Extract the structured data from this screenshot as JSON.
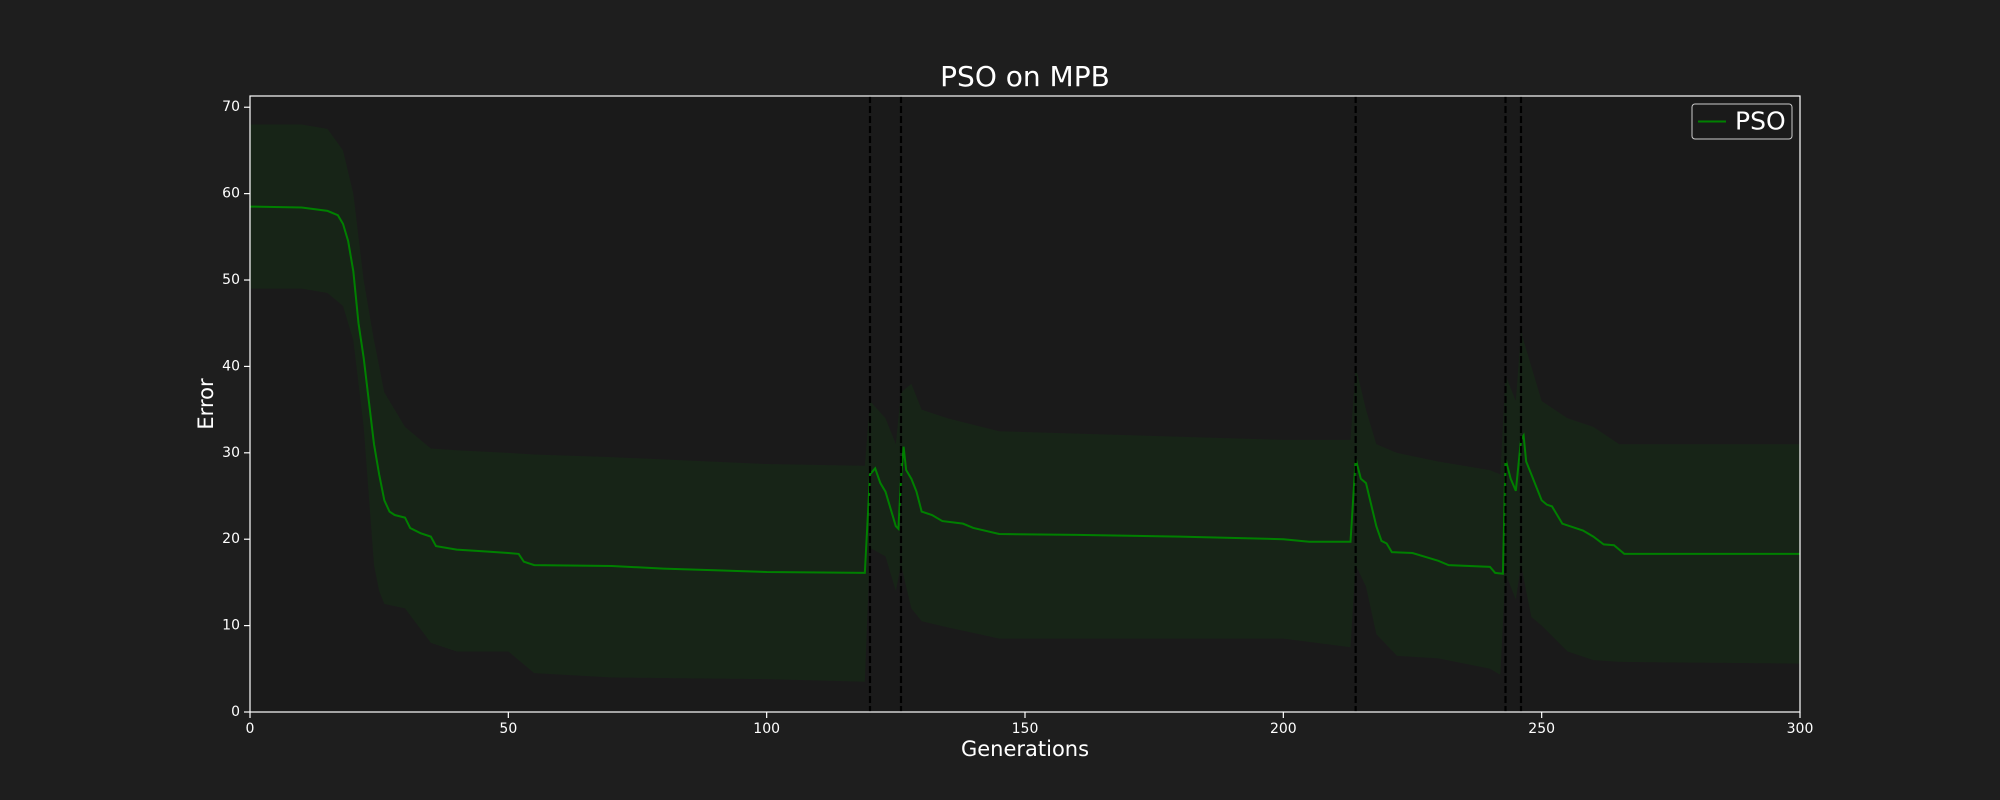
{
  "chart_data": {
    "type": "line",
    "title": "PSO on MPB",
    "xlabel": "Generations",
    "ylabel": "Error",
    "xlim": [
      0,
      300
    ],
    "ylim": [
      0,
      71.3
    ],
    "xticks": [
      0,
      50,
      100,
      150,
      200,
      250,
      300
    ],
    "yticks": [
      0,
      10,
      20,
      30,
      40,
      50,
      60,
      70
    ],
    "legend": "upper right",
    "series": [
      {
        "name": "PSO",
        "color": "#008000",
        "x": [
          0,
          10,
          15,
          17,
          18,
          19,
          20,
          21,
          22,
          23,
          24,
          25,
          26,
          27,
          28,
          30,
          31,
          33,
          35,
          36,
          40,
          45,
          50,
          52,
          53,
          55,
          70,
          80,
          90,
          100,
          119,
          120,
          121,
          122,
          123,
          124,
          125,
          125.5,
          126,
          126.5,
          127,
          128,
          129,
          130,
          132,
          134,
          138,
          140,
          145,
          160,
          180,
          200,
          205,
          213,
          214,
          215,
          216,
          217,
          218,
          219,
          220,
          221,
          225,
          230,
          232,
          240,
          241,
          242.5,
          243,
          244,
          245,
          246,
          246.5,
          247,
          248,
          250,
          251,
          252,
          254,
          258,
          260,
          262,
          264,
          266,
          300
        ],
        "values": [
          58.5,
          58.4,
          58,
          57.5,
          56.5,
          54.5,
          51,
          45,
          41,
          36,
          31,
          27.5,
          24.5,
          23.2,
          22.8,
          22.5,
          21.3,
          20.7,
          20.3,
          19.2,
          18.8,
          18.6,
          18.4,
          18.3,
          17.4,
          17,
          16.9,
          16.6,
          16.4,
          16.2,
          16.1,
          27.5,
          28.2,
          26.5,
          25.5,
          23.5,
          21.5,
          21.2,
          27,
          30.7,
          28,
          27,
          25.5,
          23.2,
          22.8,
          22.1,
          21.8,
          21.3,
          20.6,
          20.5,
          20.3,
          20,
          19.7,
          19.7,
          29.3,
          27,
          26.5,
          24,
          21.5,
          19.8,
          19.5,
          18.5,
          18.4,
          17.5,
          17,
          16.8,
          16.1,
          16,
          29.3,
          27,
          25.6,
          31.5,
          32,
          29,
          27.5,
          24.5,
          24,
          23.8,
          21.8,
          21,
          20.3,
          19.4,
          19.3,
          18.3,
          18.3
        ]
      }
    ],
    "band": {
      "color": "#008000",
      "x": [
        0,
        10,
        15,
        18,
        20,
        22,
        24,
        25,
        26,
        30,
        35,
        40,
        50,
        55,
        70,
        100,
        119,
        120,
        123,
        125,
        126,
        128,
        130,
        135,
        145,
        200,
        213,
        214,
        216,
        218,
        222,
        230,
        240,
        242,
        243,
        245,
        246,
        248,
        250,
        255,
        260,
        265,
        300
      ],
      "upper": [
        68,
        68,
        67.5,
        65,
        60,
        50,
        43,
        40,
        37,
        33,
        30.5,
        30.3,
        30,
        29.8,
        29.5,
        28.7,
        28.5,
        36,
        34,
        31,
        37,
        38,
        35,
        34,
        32.5,
        31.5,
        31.5,
        40,
        35,
        31,
        30,
        29,
        28,
        27.5,
        39,
        36,
        44,
        40,
        36,
        34,
        33,
        31,
        31
      ],
      "lower": [
        49,
        49,
        48.5,
        47,
        43,
        33,
        17,
        14,
        12.5,
        12,
        8,
        7,
        7,
        4.5,
        4,
        3.8,
        3.5,
        19,
        18,
        14,
        17,
        12,
        10.5,
        9.8,
        8.5,
        8.5,
        7.5,
        17,
        14.5,
        9,
        6.5,
        6.2,
        5,
        4.3,
        16,
        13,
        17,
        11,
        10,
        7,
        6,
        5.8,
        5.6
      ]
    },
    "vlines": [
      120,
      126,
      214,
      243,
      246
    ]
  }
}
